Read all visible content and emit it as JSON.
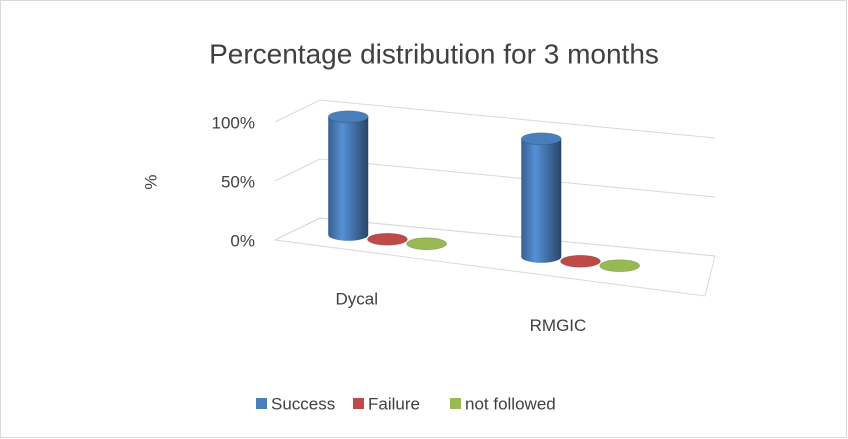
{
  "chart_data": {
    "type": "bar3d",
    "title": "Percentage distribution for 3 months",
    "ylabel": "%",
    "categories": [
      "Dycal",
      "RMGIC"
    ],
    "series": [
      {
        "name": "Success",
        "color": "#4a7ebb",
        "values": [
          100,
          100
        ]
      },
      {
        "name": "Failure",
        "color": "#be4b48",
        "values": [
          0,
          0
        ]
      },
      {
        "name": "not followed",
        "color": "#98b954",
        "values": [
          0,
          0
        ]
      }
    ],
    "ylim": [
      0,
      100
    ],
    "yticks": [
      {
        "value": 0,
        "label": "0%"
      },
      {
        "value": 50,
        "label": "50%"
      },
      {
        "value": 100,
        "label": "100%"
      }
    ],
    "grid": true,
    "legend": "bottom"
  }
}
